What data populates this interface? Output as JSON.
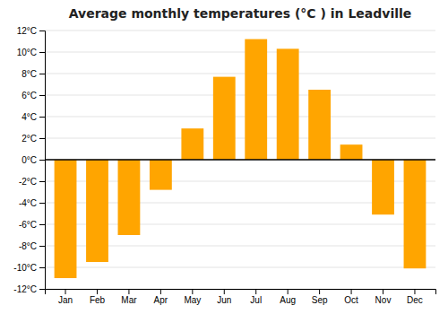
{
  "chart_data": {
    "type": "bar",
    "title": "Average monthly temperatures (°C ) in Leadville",
    "categories": [
      "Jan",
      "Feb",
      "Mar",
      "Apr",
      "May",
      "Jun",
      "Jul",
      "Aug",
      "Sep",
      "Oct",
      "Nov",
      "Dec"
    ],
    "values": [
      -11,
      -9.5,
      -7,
      -2.8,
      2.9,
      7.7,
      11.2,
      10.3,
      6.5,
      1.4,
      -5.1,
      -10.1
    ],
    "color": "#FFA500",
    "ylim": [
      -12,
      12
    ],
    "yticks": [
      {
        "value": -12,
        "label": "-12°C"
      },
      {
        "value": -10,
        "label": "-10°C"
      },
      {
        "value": -8,
        "label": "-8°C"
      },
      {
        "value": -6,
        "label": "-6°C"
      },
      {
        "value": -4,
        "label": "-4°C"
      },
      {
        "value": -2,
        "label": "-2°C"
      },
      {
        "value": 0,
        "label": "0°C"
      },
      {
        "value": 2,
        "label": "2°C"
      },
      {
        "value": 4,
        "label": "4°C"
      },
      {
        "value": 6,
        "label": "6°C"
      },
      {
        "value": 8,
        "label": "8°C"
      },
      {
        "value": 10,
        "label": "10°C"
      },
      {
        "value": 12,
        "label": "12°C"
      }
    ],
    "grid": true
  }
}
